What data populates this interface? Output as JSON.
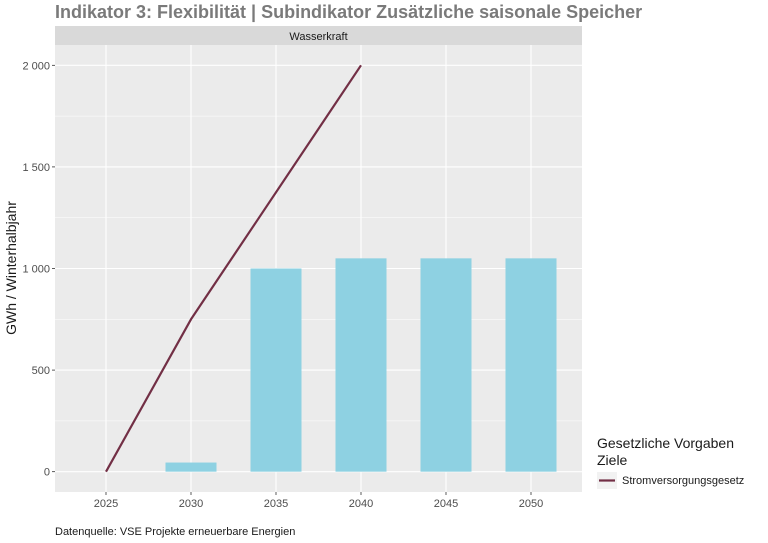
{
  "chart_data": {
    "type": "bar",
    "title": "Indikator 3: Flexibilität | Subindikator Zusätzliche saisonale Speicher",
    "facet_label": "Wasserkraft",
    "ylabel": "GWh / Winterhalbjahr",
    "xlabel": "",
    "ylim": [
      -100,
      2100
    ],
    "x_ticks": [
      "2025",
      "2030",
      "2035",
      "2040",
      "2045",
      "2050"
    ],
    "y_ticks": [
      {
        "value": 0,
        "label": "0"
      },
      {
        "value": 500,
        "label": "500"
      },
      {
        "value": 1000,
        "label": "1 000"
      },
      {
        "value": 1500,
        "label": "1 500"
      },
      {
        "value": 2000,
        "label": "2 000"
      }
    ],
    "bars": {
      "categories": [
        "2030",
        "2035",
        "2040",
        "2045",
        "2050"
      ],
      "values": [
        45,
        1000,
        1050,
        1050,
        1050
      ],
      "color": "#8ed1e2"
    },
    "series": [
      {
        "name": "Stromversorgungsgesetz",
        "type": "line",
        "color": "#722f45",
        "x": [
          "2025",
          "2030",
          "2040"
        ],
        "values": [
          0,
          750,
          2000
        ]
      }
    ],
    "legend": {
      "title_line1": "Gesetzliche Vorgaben",
      "title_line2": "Ziele",
      "position": "right-bottom"
    },
    "caption": "Datenquelle: VSE Projekte erneuerbare Energien",
    "grid": true,
    "panel_color": "#ebebeb",
    "strip_color": "#d9d9d9"
  }
}
